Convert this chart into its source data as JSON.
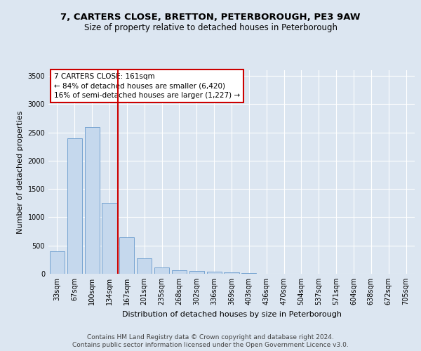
{
  "title": "7, CARTERS CLOSE, BRETTON, PETERBOROUGH, PE3 9AW",
  "subtitle": "Size of property relative to detached houses in Peterborough",
  "xlabel": "Distribution of detached houses by size in Peterborough",
  "ylabel": "Number of detached properties",
  "categories": [
    "33sqm",
    "67sqm",
    "100sqm",
    "134sqm",
    "167sqm",
    "201sqm",
    "235sqm",
    "268sqm",
    "302sqm",
    "336sqm",
    "369sqm",
    "403sqm",
    "436sqm",
    "470sqm",
    "504sqm",
    "537sqm",
    "571sqm",
    "604sqm",
    "638sqm",
    "672sqm",
    "705sqm"
  ],
  "values": [
    400,
    2400,
    2600,
    1250,
    640,
    270,
    110,
    60,
    50,
    40,
    30,
    10,
    5,
    3,
    2,
    1,
    1,
    0,
    0,
    0,
    0
  ],
  "bar_color": "#c5d8ed",
  "bar_edge_color": "#6699cc",
  "background_color": "#dce6f1",
  "plot_bg_color": "#dce6f1",
  "vline_color": "#cc0000",
  "annotation_title": "7 CARTERS CLOSE: 161sqm",
  "annotation_line1": "← 84% of detached houses are smaller (6,420)",
  "annotation_line2": "16% of semi-detached houses are larger (1,227) →",
  "annotation_box_color": "#ffffff",
  "annotation_border_color": "#cc0000",
  "ylim": [
    0,
    3600
  ],
  "yticks": [
    0,
    500,
    1000,
    1500,
    2000,
    2500,
    3000,
    3500
  ],
  "footer1": "Contains HM Land Registry data © Crown copyright and database right 2024.",
  "footer2": "Contains public sector information licensed under the Open Government Licence v3.0.",
  "title_fontsize": 9.5,
  "subtitle_fontsize": 8.5,
  "tick_fontsize": 7,
  "ylabel_fontsize": 8,
  "xlabel_fontsize": 8,
  "annotation_fontsize": 7.5
}
